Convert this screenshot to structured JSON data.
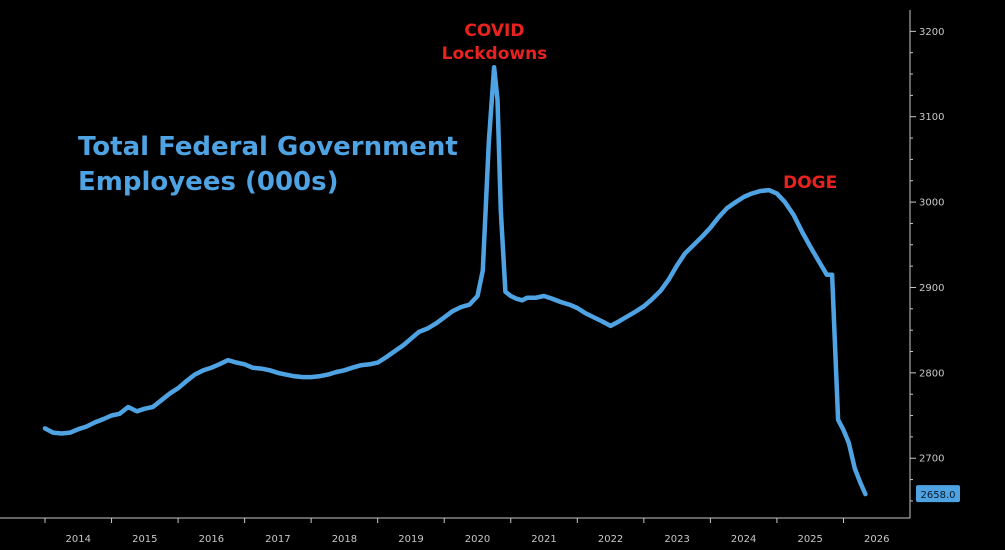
{
  "chart_data": {
    "type": "line",
    "title_lines": [
      "Total Federal Government",
      "Employees (000s)"
    ],
    "annotations": [
      {
        "lines": [
          "COVID",
          "Lockdowns"
        ],
        "x": 2020.3,
        "y": 3160
      },
      {
        "lines": [
          "DOGE"
        ],
        "x": 2025.0,
        "y": 3020
      }
    ],
    "x_tick_labels": [
      "2014",
      "2015",
      "2016",
      "2017",
      "2018",
      "2019",
      "2020",
      "2021",
      "2022",
      "2023",
      "2024",
      "2025",
      "2026"
    ],
    "y_tick_labels": [
      "2700",
      "2800",
      "2900",
      "3000",
      "3100",
      "3200"
    ],
    "xlim": [
      2013.5,
      2026.5
    ],
    "ylim": [
      2630,
      3225
    ],
    "grid": false,
    "last_value_label": "2658.0",
    "colors": {
      "line": "#4fa3e3",
      "annotation": "#e8231f",
      "background": "#000000",
      "axis": "#c8c8c8"
    },
    "series": [
      {
        "x": [
          2013.5,
          2013.62,
          2013.75,
          2013.88,
          2014.0,
          2014.12,
          2014.25,
          2014.38,
          2014.5,
          2014.62,
          2014.75,
          2014.88,
          2015.0,
          2015.12,
          2015.25,
          2015.38,
          2015.5,
          2015.62,
          2015.75,
          2015.88,
          2016.0,
          2016.12,
          2016.25,
          2016.38,
          2016.5,
          2016.62,
          2016.75,
          2016.88,
          2017.0,
          2017.12,
          2017.25,
          2017.38,
          2017.5,
          2017.62,
          2017.75,
          2017.88,
          2018.0,
          2018.12,
          2018.25,
          2018.38,
          2018.5,
          2018.62,
          2018.75,
          2018.88,
          2019.0,
          2019.12,
          2019.25,
          2019.38,
          2019.5,
          2019.62,
          2019.75,
          2019.88,
          2020.0,
          2020.08,
          2020.17,
          2020.25,
          2020.3,
          2020.35,
          2020.42,
          2020.5,
          2020.58,
          2020.67,
          2020.75,
          2020.88,
          2021.0,
          2021.12,
          2021.25,
          2021.38,
          2021.5,
          2021.62,
          2021.75,
          2021.88,
          2022.0,
          2022.12,
          2022.25,
          2022.38,
          2022.5,
          2022.62,
          2022.75,
          2022.88,
          2023.0,
          2023.12,
          2023.25,
          2023.38,
          2023.5,
          2023.62,
          2023.75,
          2023.88,
          2024.0,
          2024.12,
          2024.25,
          2024.38,
          2024.5,
          2024.62,
          2024.75,
          2024.88,
          2025.0,
          2025.12,
          2025.25,
          2025.33,
          2025.42,
          2025.5,
          2025.58,
          2025.67,
          2025.75,
          2025.83
        ],
        "values": [
          2735,
          2730,
          2729,
          2730,
          2734,
          2737,
          2742,
          2746,
          2750,
          2752,
          2760,
          2755,
          2758,
          2760,
          2768,
          2776,
          2782,
          2790,
          2798,
          2803,
          2806,
          2810,
          2815,
          2812,
          2810,
          2806,
          2805,
          2803,
          2800,
          2798,
          2796,
          2795,
          2795,
          2796,
          2798,
          2801,
          2803,
          2806,
          2809,
          2810,
          2812,
          2818,
          2825,
          2832,
          2840,
          2848,
          2852,
          2858,
          2865,
          2872,
          2877,
          2880,
          2890,
          2920,
          3070,
          3158,
          3120,
          2990,
          2895,
          2890,
          2887,
          2885,
          2888,
          2888,
          2890,
          2887,
          2883,
          2880,
          2876,
          2870,
          2865,
          2860,
          2855,
          2860,
          2866,
          2872,
          2878,
          2886,
          2896,
          2910,
          2926,
          2940,
          2950,
          2960,
          2970,
          2982,
          2993,
          3000,
          3006,
          3010,
          3013,
          3014,
          3010,
          3000,
          2985,
          2965,
          2948,
          2932,
          2915,
          2915,
          2745,
          2733,
          2718,
          2688,
          2672,
          2658
        ]
      }
    ]
  }
}
